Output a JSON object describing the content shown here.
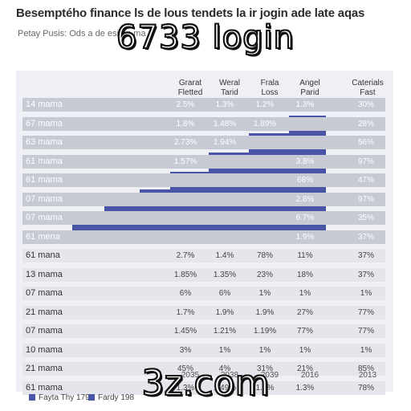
{
  "heading": "Besemptého finance ls de lous tendets la ir jogin ade late aqas",
  "subheading": "Petay Pusis: Ods a de esi on ma s",
  "overlay": {
    "top": "6733 login",
    "bottom": "3z.com"
  },
  "columns": [
    {
      "line1": "Grarat",
      "line2": "Fletted"
    },
    {
      "line1": "Weral",
      "line2": "Tarid"
    },
    {
      "line1": "Frala",
      "line2": "Loss"
    },
    {
      "line1": "Angel",
      "line2": "Parid"
    },
    {
      "line1": "Caterials",
      "line2": "Fast"
    }
  ],
  "rows": [
    {
      "label": "14 mama",
      "cells": [
        "2.5%",
        "1.3%",
        "1.2%",
        "1.3%",
        "30%"
      ]
    },
    {
      "label": "67 mama",
      "cells": [
        "1.8%",
        "1.48%",
        "1.89%",
        "",
        "28%"
      ]
    },
    {
      "label": "63 mama",
      "cells": [
        "2.73%",
        "1.94%",
        "",
        "",
        "56%"
      ]
    },
    {
      "label": "61 mama",
      "cells": [
        "1.57%",
        "",
        "",
        "3.8%",
        "97%"
      ]
    },
    {
      "label": "61 mama",
      "cells": [
        "",
        "",
        "",
        "68%",
        "47%"
      ]
    },
    {
      "label": "07 mama",
      "cells": [
        "",
        "",
        "",
        "2.8%",
        "97%"
      ]
    },
    {
      "label": "07 mama",
      "cells": [
        "",
        "",
        "",
        "6.7%",
        "35%"
      ]
    },
    {
      "label": "61 mena",
      "cells": [
        "",
        "",
        "",
        "1.9%",
        "37%"
      ]
    },
    {
      "label": "61 mana",
      "cells": [
        "2.7%",
        "1.4%",
        "78%",
        "11%",
        "37%"
      ]
    },
    {
      "label": "13 mama",
      "cells": [
        "1.85%",
        "1.35%",
        "23%",
        "18%",
        "37%"
      ]
    },
    {
      "label": "07 mama",
      "cells": [
        "6%",
        "6%",
        "1%",
        "1%",
        "1%"
      ]
    },
    {
      "label": "21 mama",
      "cells": [
        "1.7%",
        "1.9%",
        "1.9%",
        "27%",
        "77%"
      ]
    },
    {
      "label": "07 mama",
      "cells": [
        "1.45%",
        "1.21%",
        "1.19%",
        "77%",
        "77%"
      ]
    },
    {
      "label": "10 mama",
      "cells": [
        "3%",
        "1%",
        "1%",
        "1%",
        "1%"
      ]
    },
    {
      "label": "21 mama",
      "cells": [
        "45%",
        "4%",
        "31%",
        "21%",
        "85%"
      ]
    },
    {
      "label": "61 mama",
      "cells": [
        "1.3%",
        "1.49%",
        "1.7%",
        "1.3%",
        "78%"
      ]
    }
  ],
  "x_labels": [
    "2035",
    "2038",
    "2039",
    "2016",
    "2013"
  ],
  "legend": [
    "Fayta Thy 179",
    "Fardy 198"
  ]
}
